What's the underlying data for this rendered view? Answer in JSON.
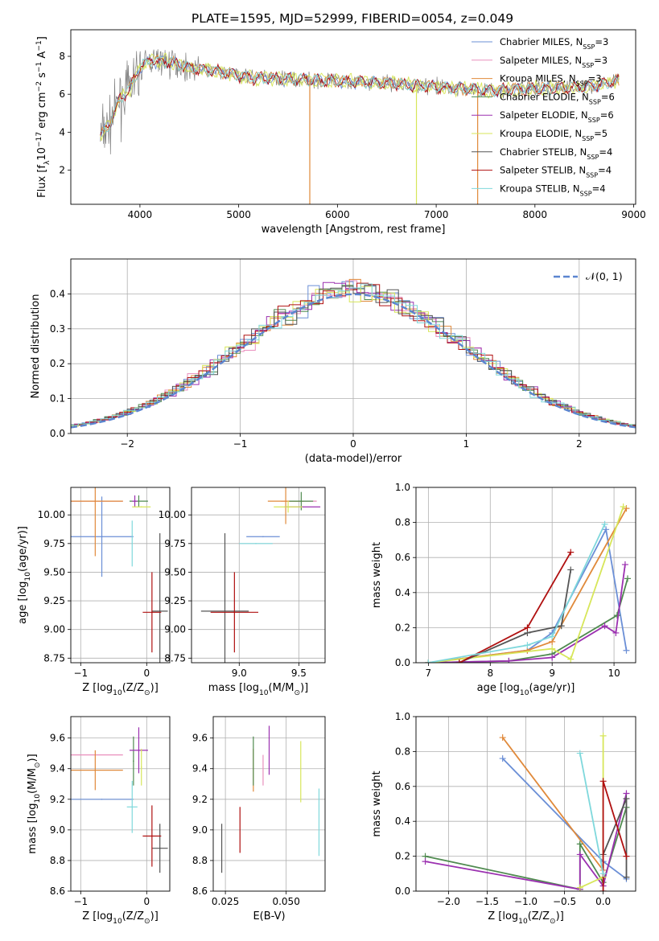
{
  "title": "PLATE=1595, MJD=52999, FIBERID=0054, z=0.049",
  "series_labels": [
    {
      "name": "Chabrier MILES, N",
      "sub": "SSP",
      "tail": "=3",
      "color": "#6b8fd6"
    },
    {
      "name": "Salpeter MILES, N",
      "sub": "SSP",
      "tail": "=3",
      "color": "#e98fbd"
    },
    {
      "name": "Kroupa MILES, N",
      "sub": "SSP",
      "tail": "=3",
      "color": "#e0893a"
    },
    {
      "name": "Chabrier ELODIE, N",
      "sub": "SSP",
      "tail": "=6",
      "color": "#4f8a4f"
    },
    {
      "name": "Salpeter ELODIE, N",
      "sub": "SSP",
      "tail": "=6",
      "color": "#9b30b0"
    },
    {
      "name": "Kroupa ELODIE, N",
      "sub": "SSP",
      "tail": "=5",
      "color": "#d7e65a"
    },
    {
      "name": "Chabrier STELIB, N",
      "sub": "SSP",
      "tail": "=4",
      "color": "#555555"
    },
    {
      "name": "Salpeter STELIB, N",
      "sub": "SSP",
      "tail": "=4",
      "color": "#b01010"
    },
    {
      "name": "Kroupa STELIB, N",
      "sub": "SSP",
      "tail": "=4",
      "color": "#7fd8dc"
    }
  ],
  "chart_data": [
    {
      "type": "line",
      "id": "spectrum",
      "xlabel": "wavelength [Angstrom, rest frame]",
      "ylabel_main": "Flux [f",
      "ylabel_sub": "λ",
      "ylabel_rest": "10",
      "ylabel_sup1": "−17",
      "ylabel_mid": " erg cm",
      "ylabel_sup2": "−2",
      "ylabel_mid2": " s",
      "ylabel_sup3": "−1",
      "ylabel_end": " A",
      "ylabel_sup4": "−1",
      "ylabel_close": "]",
      "xlim": [
        3300,
        9020
      ],
      "ylim": [
        0.2,
        9.4
      ],
      "xticks": [
        "4000",
        "5000",
        "6000",
        "7000",
        "8000",
        "9000"
      ],
      "xtick_values": [
        4000,
        5000,
        6000,
        7000,
        8000,
        9000
      ],
      "yticks": [
        "2",
        "4",
        "6",
        "8"
      ],
      "ytick_values": [
        2,
        4,
        6,
        8
      ],
      "continuum": [
        [
          3600,
          3.8
        ],
        [
          3700,
          4.5
        ],
        [
          3800,
          5.8
        ],
        [
          3900,
          6.3
        ],
        [
          4000,
          7.4
        ],
        [
          4100,
          7.8
        ],
        [
          4300,
          7.7
        ],
        [
          4500,
          7.4
        ],
        [
          4800,
          7.2
        ],
        [
          5100,
          6.9
        ],
        [
          5500,
          6.8
        ],
        [
          6000,
          6.7
        ],
        [
          6500,
          6.6
        ],
        [
          7000,
          6.4
        ],
        [
          7500,
          6.2
        ],
        [
          8000,
          6.3
        ],
        [
          8500,
          6.4
        ],
        [
          8850,
          6.7
        ]
      ],
      "spikes": [
        [
          5720,
          0.2
        ],
        [
          6800,
          0.2
        ],
        [
          7420,
          0.2
        ]
      ]
    },
    {
      "type": "histogram",
      "id": "residuals",
      "xlabel": "(data-model)/error",
      "ylabel": "Normed distribution",
      "xlim": [
        -2.5,
        2.5
      ],
      "ylim": [
        0,
        0.5
      ],
      "xticks": [
        "−2",
        "−1",
        "0",
        "1",
        "2"
      ],
      "xtick_values": [
        -2,
        -1,
        0,
        1,
        2
      ],
      "yticks": [
        "0.0",
        "0.1",
        "0.2",
        "0.3",
        "0.4"
      ],
      "ytick_values": [
        0,
        0.1,
        0.2,
        0.3,
        0.4
      ],
      "legend": "𝒩(0, 1)",
      "normal_color": "#5b85d0",
      "bin_width": 0.1
    },
    {
      "type": "scatter",
      "id": "age-vs-z",
      "xlabel": "Z [log",
      "xlabel_sub": "10",
      "xlabel_end": "(Z/Z",
      "xlabel_sub2": "⊙",
      "xlabel_close": ")]",
      "ylabel": "age  [log",
      "ylabel_sub": "10",
      "ylabel_end": "(age/yr)]",
      "xlim": [
        -1.15,
        0.35
      ],
      "ylim": [
        8.71,
        10.24
      ],
      "xticks": [
        "−1",
        "0"
      ],
      "xtick_values": [
        -1,
        0
      ],
      "yticks": [
        "8.75",
        "9.00",
        "9.25",
        "9.50",
        "9.75",
        "10.00"
      ],
      "ytick_values": [
        8.75,
        9.0,
        9.25,
        9.5,
        9.75,
        10.0
      ],
      "points": [
        {
          "series": 0,
          "x": -0.68,
          "y": 9.81,
          "xerr": 0.48,
          "yerr": 0.35
        },
        {
          "series": 1,
          "x": -0.78,
          "y": 10.12,
          "xerr": 0.42,
          "yerr": 0.0
        },
        {
          "series": 2,
          "x": -0.78,
          "y": 10.12,
          "xerr": 0.42,
          "yerr": 0.48
        },
        {
          "series": 3,
          "x": -0.12,
          "y": 10.12,
          "xerr": 0.14,
          "yerr": 0.05
        },
        {
          "series": 4,
          "x": -0.18,
          "y": 10.12,
          "xerr": 0.04,
          "yerr": 0.05
        },
        {
          "series": 5,
          "x": -0.08,
          "y": 10.07,
          "xerr": 0.14,
          "yerr": 0.0
        },
        {
          "series": 6,
          "x": 0.2,
          "y": 9.16,
          "xerr": 0.12,
          "yerr": 0.68
        },
        {
          "series": 7,
          "x": 0.08,
          "y": 9.15,
          "xerr": 0.14,
          "yerr": 0.35
        },
        {
          "series": 8,
          "x": -0.22,
          "y": 9.75,
          "xerr": 0.0,
          "yerr": 0.2
        }
      ]
    },
    {
      "type": "scatter",
      "id": "age-vs-mass",
      "xlabel": "mass [log",
      "xlabel_sub": "10",
      "xlabel_end": "(M/M",
      "xlabel_sub2": "⊙",
      "xlabel_close": ")]",
      "xlim": [
        8.6,
        9.72
      ],
      "ylim": [
        8.71,
        10.24
      ],
      "xticks": [
        "9.0",
        "9.5"
      ],
      "xtick_values": [
        9.0,
        9.5
      ],
      "yticks": [
        "8.75",
        "9.00",
        "9.25",
        "9.50",
        "9.75",
        "10.00"
      ],
      "ytick_values": [
        8.75,
        9.0,
        9.25,
        9.5,
        9.75,
        10.0
      ],
      "points": [
        {
          "series": 0,
          "x": 9.2,
          "y": 9.81,
          "xerr": 0.14,
          "yerr": 0.0
        },
        {
          "series": 1,
          "x": 9.5,
          "y": 10.12,
          "xerr": 0.15,
          "yerr": 0.0
        },
        {
          "series": 2,
          "x": 9.39,
          "y": 10.12,
          "xerr": 0.15,
          "yerr": 0.2
        },
        {
          "series": 3,
          "x": 9.52,
          "y": 10.12,
          "xerr": 0.1,
          "yerr": 0.08
        },
        {
          "series": 4,
          "x": 9.53,
          "y": 10.07,
          "xerr": 0.15,
          "yerr": 0.0
        },
        {
          "series": 5,
          "x": 9.41,
          "y": 10.07,
          "xerr": 0.12,
          "yerr": 0.05
        },
        {
          "series": 6,
          "x": 8.88,
          "y": 9.16,
          "xerr": 0.2,
          "yerr": 0.68
        },
        {
          "series": 7,
          "x": 8.96,
          "y": 9.15,
          "xerr": 0.2,
          "yerr": 0.35
        },
        {
          "series": 8,
          "x": 9.14,
          "y": 9.75,
          "xerr": 0.14,
          "yerr": 0.0
        }
      ]
    },
    {
      "type": "line",
      "id": "weight-vs-age",
      "xlabel": "age  [log",
      "xlabel_sub": "10",
      "xlabel_end": "(age/yr)]",
      "ylabel": "mass weight",
      "xlim": [
        6.8,
        10.35
      ],
      "ylim": [
        0,
        1
      ],
      "xticks": [
        "7",
        "8",
        "9",
        "10"
      ],
      "xtick_values": [
        7,
        8,
        9,
        10
      ],
      "yticks": [
        "0.0",
        "0.2",
        "0.4",
        "0.6",
        "0.8",
        "1.0"
      ],
      "ytick_values": [
        0,
        0.2,
        0.4,
        0.6,
        0.8,
        1.0
      ],
      "series": [
        {
          "series": 0,
          "x": [
            7.0,
            8.6,
            9.0,
            9.87,
            10.2
          ],
          "y": [
            0.0,
            0.07,
            0.17,
            0.76,
            0.07
          ]
        },
        {
          "series": 2,
          "x": [
            7.0,
            8.6,
            9.0,
            10.2
          ],
          "y": [
            0.0,
            0.07,
            0.12,
            0.88
          ]
        },
        {
          "series": 3,
          "x": [
            7.0,
            8.3,
            9.0,
            10.05,
            10.22
          ],
          "y": [
            0.0,
            0.01,
            0.05,
            0.27,
            0.48
          ]
        },
        {
          "series": 4,
          "x": [
            7.0,
            8.3,
            9.0,
            9.85,
            10.03,
            10.18
          ],
          "y": [
            0.0,
            0.01,
            0.03,
            0.21,
            0.17,
            0.56
          ]
        },
        {
          "series": 5,
          "x": [
            7.0,
            9.0,
            9.3,
            10.15
          ],
          "y": [
            0.0,
            0.08,
            0.02,
            0.89
          ]
        },
        {
          "series": 6,
          "x": [
            7.5,
            8.6,
            9.15,
            9.3
          ],
          "y": [
            0.0,
            0.17,
            0.21,
            0.53
          ]
        },
        {
          "series": 7,
          "x": [
            7.5,
            8.6,
            9.3
          ],
          "y": [
            0.0,
            0.2,
            0.63
          ]
        },
        {
          "series": 8,
          "x": [
            7.0,
            8.6,
            9.0,
            9.85
          ],
          "y": [
            0.0,
            0.1,
            0.15,
            0.79
          ]
        }
      ]
    },
    {
      "type": "scatter",
      "id": "mass-vs-z",
      "xlabel": "Z [log",
      "xlabel_sub": "10",
      "xlabel_end": "(Z/Z",
      "xlabel_sub2": "⊙",
      "xlabel_close": ")]",
      "ylabel": "mass [log",
      "ylabel_sub": "10",
      "ylabel_end": "(M/M",
      "ylabel_sub2": "⊙",
      "ylabel_close": ")]",
      "xlim": [
        -1.15,
        0.35
      ],
      "ylim": [
        8.6,
        9.74
      ],
      "xticks": [
        "−1",
        "0"
      ],
      "xtick_values": [
        -1,
        0
      ],
      "yticks": [
        "8.6",
        "8.8",
        "9.0",
        "9.2",
        "9.4",
        "9.6"
      ],
      "ytick_values": [
        8.6,
        8.8,
        9.0,
        9.2,
        9.4,
        9.6
      ],
      "points": [
        {
          "series": 0,
          "x": -0.68,
          "y": 9.2,
          "xerr": 0.48,
          "yerr": 0.0
        },
        {
          "series": 1,
          "x": -0.78,
          "y": 9.49,
          "xerr": 0.42,
          "yerr": 0.0
        },
        {
          "series": 2,
          "x": -0.78,
          "y": 9.39,
          "xerr": 0.42,
          "yerr": 0.13
        },
        {
          "series": 3,
          "x": -0.2,
          "y": 9.45,
          "xerr": 0.0,
          "yerr": 0.16
        },
        {
          "series": 4,
          "x": -0.12,
          "y": 9.52,
          "xerr": 0.14,
          "yerr": 0.15
        },
        {
          "series": 5,
          "x": -0.08,
          "y": 9.41,
          "xerr": 0.0,
          "yerr": 0.12
        },
        {
          "series": 6,
          "x": 0.2,
          "y": 8.88,
          "xerr": 0.12,
          "yerr": 0.16
        },
        {
          "series": 7,
          "x": 0.08,
          "y": 8.96,
          "xerr": 0.14,
          "yerr": 0.2
        },
        {
          "series": 8,
          "x": -0.22,
          "y": 9.15,
          "xerr": 0.08,
          "yerr": 0.17
        }
      ]
    },
    {
      "type": "errorbar",
      "id": "mass-vs-ebv",
      "xlabel": "E(B-V)",
      "xlim": [
        0.02,
        0.066
      ],
      "ylim": [
        8.6,
        9.74
      ],
      "xticks": [
        "0.025",
        "0.050"
      ],
      "xtick_values": [
        0.025,
        0.05
      ],
      "yticks": [
        "8.6",
        "8.8",
        "9.0",
        "9.2",
        "9.4",
        "9.6"
      ],
      "ytick_values": [
        8.6,
        8.8,
        9.0,
        9.2,
        9.4,
        9.6
      ],
      "bars": [
        {
          "series": 6,
          "x": 0.0235,
          "y": 8.88,
          "yerr": 0.16
        },
        {
          "series": 7,
          "x": 0.031,
          "y": 9.0,
          "yerr": 0.15
        },
        {
          "series": 2,
          "x": 0.0365,
          "y": 9.39,
          "yerr": 0.14
        },
        {
          "series": 3,
          "x": 0.0365,
          "y": 9.45,
          "yerr": 0.16
        },
        {
          "series": 1,
          "x": 0.0405,
          "y": 9.39,
          "yerr": 0.1
        },
        {
          "series": 4,
          "x": 0.043,
          "y": 9.52,
          "yerr": 0.16
        },
        {
          "series": 5,
          "x": 0.056,
          "y": 9.38,
          "yerr": 0.2
        },
        {
          "series": 8,
          "x": 0.0635,
          "y": 9.05,
          "yerr": 0.22
        }
      ]
    },
    {
      "type": "line",
      "id": "weight-vs-z",
      "xlabel": "Z [log",
      "xlabel_sub": "10",
      "xlabel_end": "(Z/Z",
      "xlabel_sub2": "⊙",
      "xlabel_close": ")]",
      "ylabel": "mass weight",
      "xlim": [
        -2.42,
        0.42
      ],
      "ylim": [
        0,
        1
      ],
      "xticks": [
        "−2.0",
        "−1.5",
        "−1.0",
        "−0.5",
        "0.0"
      ],
      "xtick_values": [
        -2,
        -1.5,
        -1,
        -0.5,
        0
      ],
      "yticks": [
        "0.0",
        "0.2",
        "0.4",
        "0.6",
        "0.8",
        "1.0"
      ],
      "ytick_values": [
        0,
        0.2,
        0.4,
        0.6,
        0.8,
        1.0
      ],
      "series": [
        {
          "series": 0,
          "x": [
            -1.3,
            0.0,
            0.3
          ],
          "y": [
            0.76,
            0.17,
            0.07
          ]
        },
        {
          "series": 2,
          "x": [
            -1.3,
            0.0
          ],
          "y": [
            0.88,
            0.12
          ]
        },
        {
          "series": 3,
          "x": [
            -2.3,
            -0.3,
            -0.3,
            0.0,
            0.3
          ],
          "y": [
            0.2,
            0.01,
            0.27,
            0.05,
            0.48
          ]
        },
        {
          "series": 4,
          "x": [
            -2.3,
            -0.3,
            -0.3,
            0.0,
            0.3
          ],
          "y": [
            0.17,
            0.01,
            0.21,
            0.03,
            0.56
          ]
        },
        {
          "series": 5,
          "x": [
            -0.3,
            0.0,
            0.0
          ],
          "y": [
            0.02,
            0.08,
            0.89
          ]
        },
        {
          "series": 6,
          "x": [
            0.0,
            0.3,
            0.3
          ],
          "y": [
            0.21,
            0.53,
            0.08
          ]
        },
        {
          "series": 7,
          "x": [
            0.0,
            0.0,
            0.3
          ],
          "y": [
            0.0,
            0.63,
            0.2
          ]
        },
        {
          "series": 8,
          "x": [
            -0.3,
            0.0
          ],
          "y": [
            0.79,
            0.1
          ]
        }
      ]
    }
  ]
}
